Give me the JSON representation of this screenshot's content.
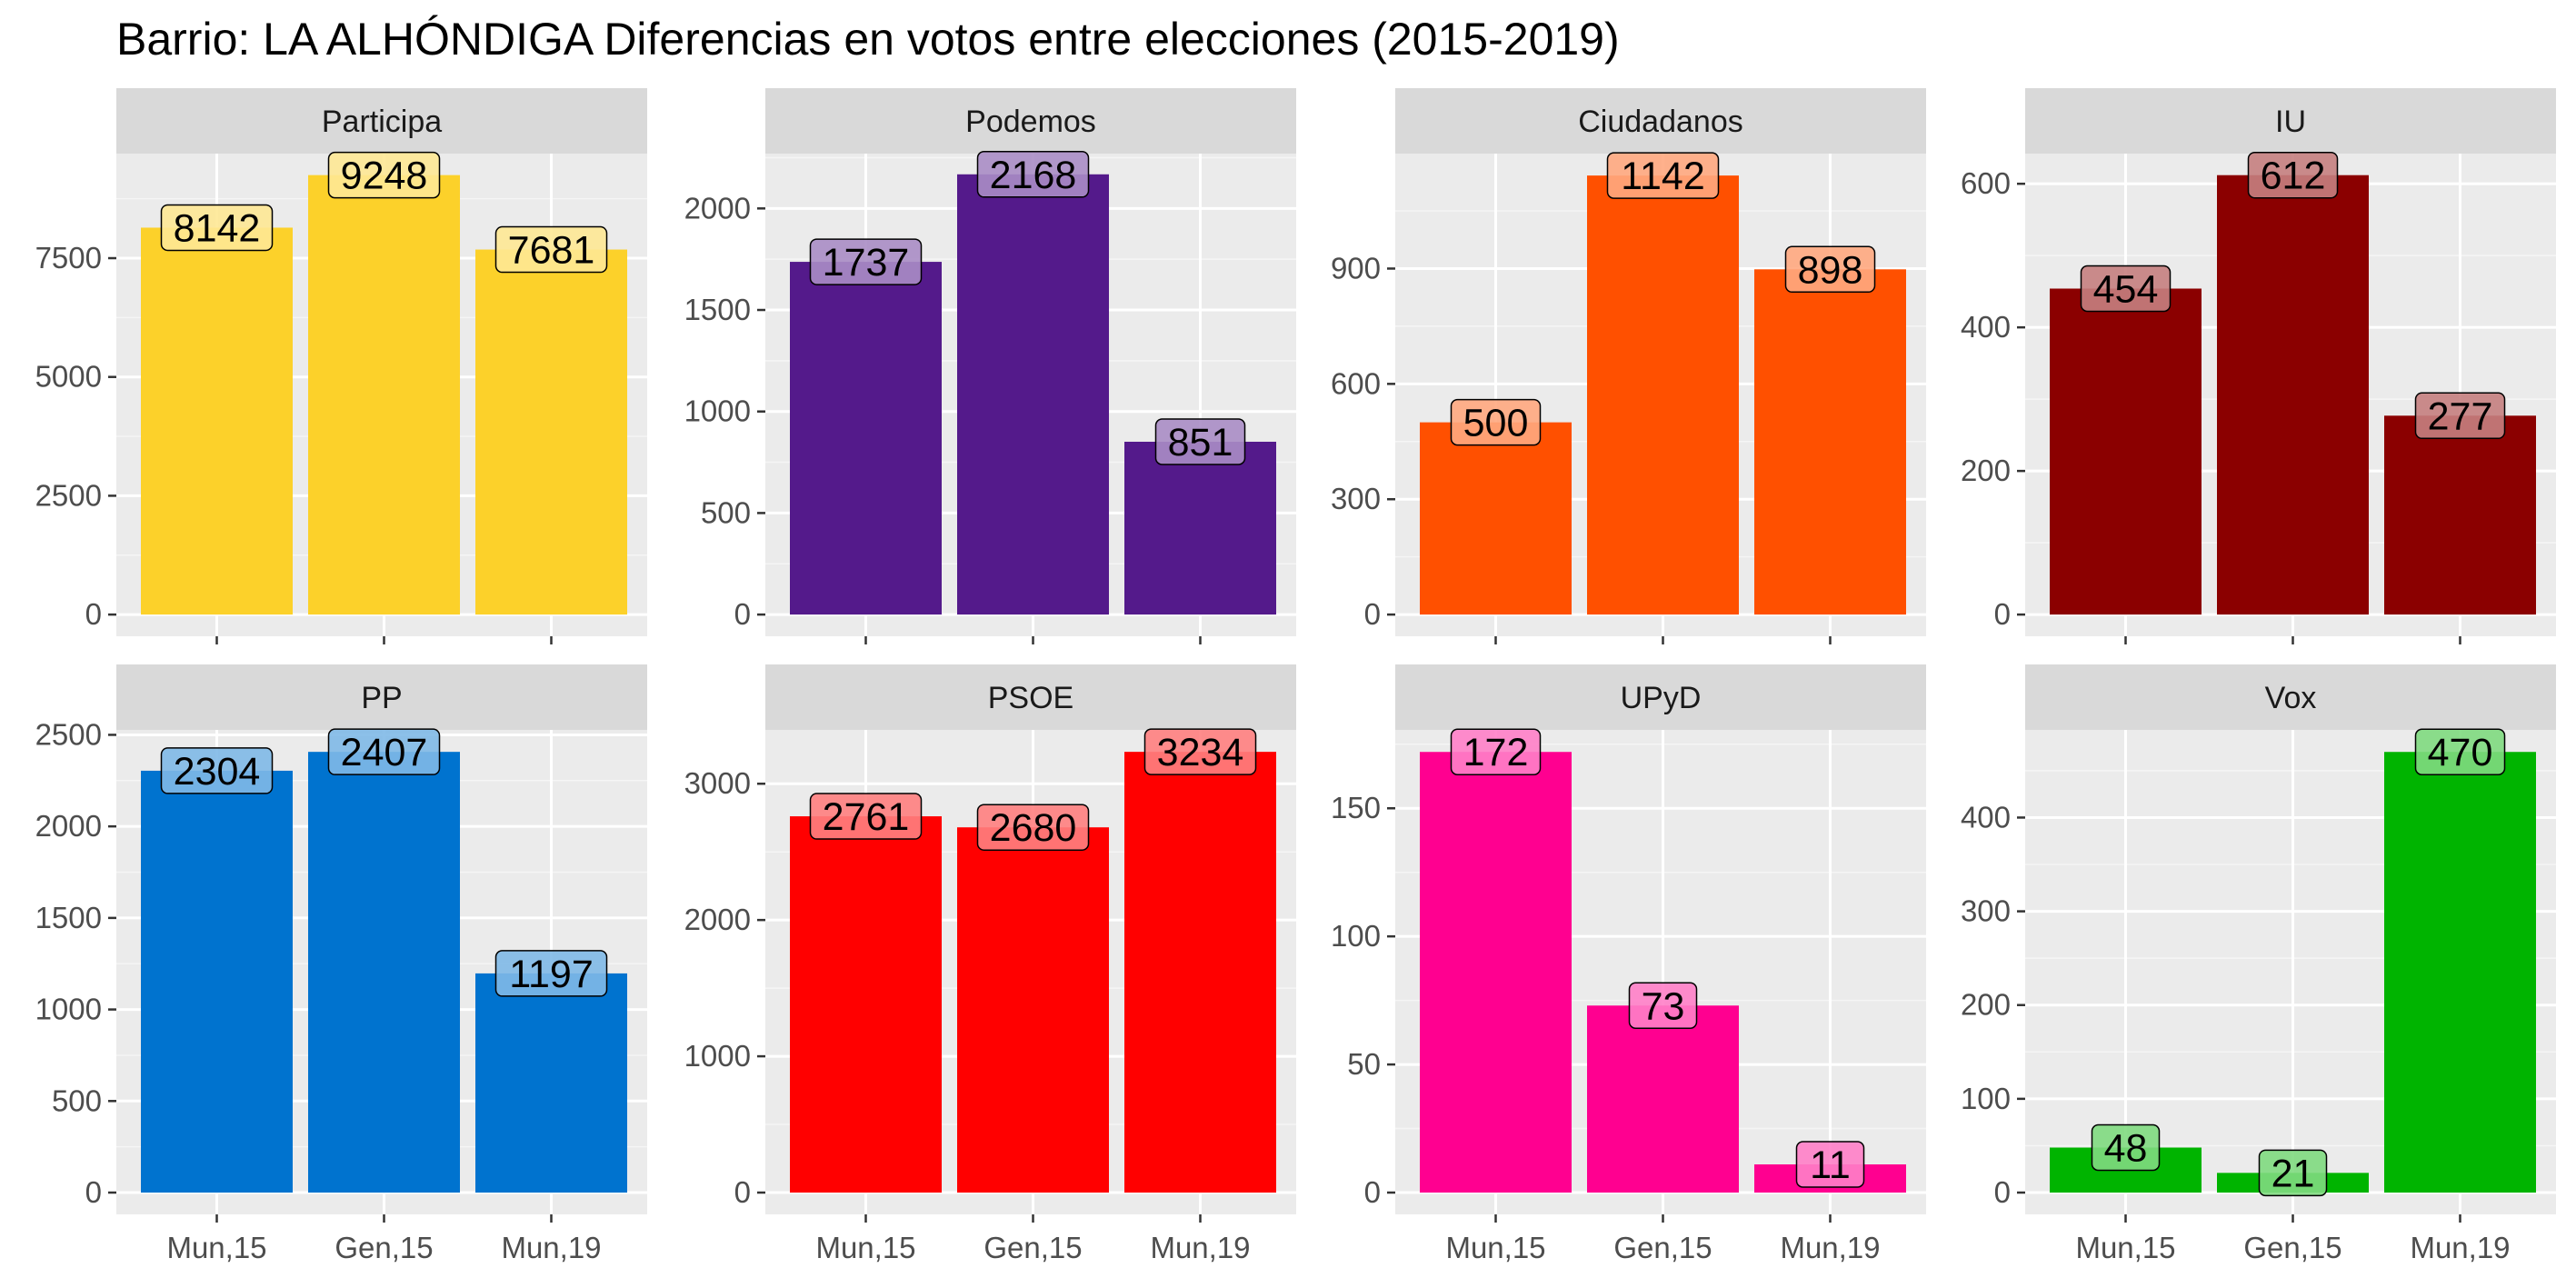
{
  "chart_data": {
    "type": "bar",
    "title": "Barrio:  LA ALHÓNDIGA  Diferencias en votos entre elecciones (2015-2019)",
    "xlabel": "",
    "ylabel": "",
    "grid": true,
    "legend": "none",
    "categories": [
      "Mun,15",
      "Gen,15",
      "Mun,19"
    ],
    "panels": [
      {
        "name": "Participa",
        "color": "#FCD12A",
        "values": [
          8142,
          9248,
          7681
        ],
        "ylim": [
          0,
          9700
        ],
        "yticks": [
          0,
          2500,
          5000,
          7500
        ]
      },
      {
        "name": "Podemos",
        "color": "#541A8B",
        "values": [
          1737,
          2168,
          851
        ],
        "ylim": [
          0,
          2270
        ],
        "yticks": [
          0,
          500,
          1000,
          1500,
          2000
        ]
      },
      {
        "name": "Ciudadanos",
        "color": "#FF5000",
        "values": [
          500,
          1142,
          898
        ],
        "ylim": [
          0,
          1199
        ],
        "yticks": [
          0,
          300,
          600,
          900
        ]
      },
      {
        "name": "IU",
        "color": "#8B0000",
        "values": [
          454,
          612,
          277
        ],
        "ylim": [
          0,
          642
        ],
        "yticks": [
          0,
          200,
          400,
          600
        ]
      },
      {
        "name": "PP",
        "color": "#0073CF",
        "values": [
          2304,
          2407,
          1197
        ],
        "ylim": [
          0,
          2527
        ],
        "yticks": [
          0,
          500,
          1000,
          1500,
          2000,
          2500
        ]
      },
      {
        "name": "PSOE",
        "color": "#FF0000",
        "values": [
          2761,
          2680,
          3234
        ],
        "ylim": [
          0,
          3395
        ],
        "yticks": [
          0,
          1000,
          2000,
          3000
        ]
      },
      {
        "name": "UPyD",
        "color": "#FF0090",
        "values": [
          172,
          73,
          11
        ],
        "ylim": [
          0,
          180.6
        ],
        "yticks": [
          0,
          50,
          100,
          150
        ]
      },
      {
        "name": "Vox",
        "color": "#00B400",
        "values": [
          48,
          21,
          470
        ],
        "ylim": [
          0,
          493.5
        ],
        "yticks": [
          0,
          100,
          200,
          300,
          400
        ]
      }
    ]
  }
}
